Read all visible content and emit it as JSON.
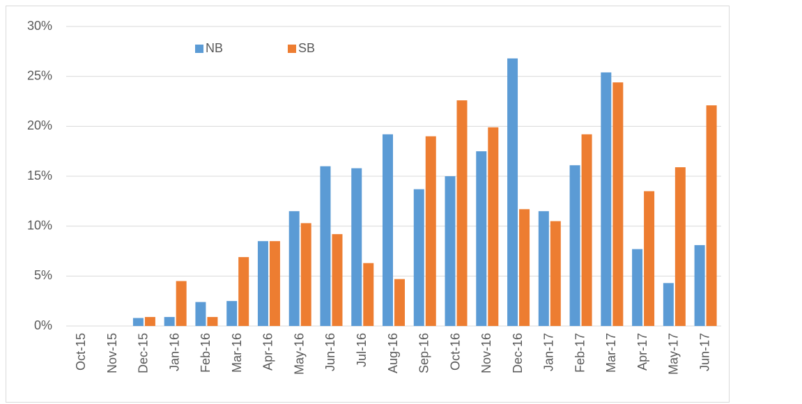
{
  "chart_data": {
    "type": "bar",
    "categories": [
      "Oct-15",
      "Nov-15",
      "Dec-15",
      "Jan-16",
      "Feb-16",
      "Mar-16",
      "Apr-16",
      "May-16",
      "Jun-16",
      "Jul-16",
      "Aug-16",
      "Sep-16",
      "Oct-16",
      "Nov-16",
      "Dec-16",
      "Jan-17",
      "Feb-17",
      "Mar-17",
      "Apr-17",
      "May-17",
      "Jun-17"
    ],
    "series": [
      {
        "name": "NB",
        "color": "#5b9bd5",
        "values": [
          0,
          0,
          0.8,
          0.9,
          2.4,
          2.5,
          8.5,
          11.5,
          16.0,
          15.8,
          19.2,
          13.7,
          15.0,
          17.5,
          26.8,
          11.5,
          16.1,
          25.4,
          7.7,
          4.3,
          8.1
        ]
      },
      {
        "name": "SB",
        "color": "#ed7d31",
        "values": [
          0,
          0,
          0.9,
          4.5,
          0.9,
          6.9,
          8.5,
          10.3,
          9.2,
          6.3,
          4.7,
          19.0,
          22.6,
          19.9,
          11.7,
          10.5,
          19.2,
          24.4,
          13.5,
          15.9,
          22.1
        ]
      }
    ],
    "ylim": [
      0,
      30
    ],
    "yticks": [
      {
        "value": 0,
        "label": "0%"
      },
      {
        "value": 5,
        "label": "5%"
      },
      {
        "value": 10,
        "label": "10%"
      },
      {
        "value": 15,
        "label": "15%"
      },
      {
        "value": 20,
        "label": "20%"
      },
      {
        "value": 25,
        "label": "25%"
      },
      {
        "value": 30,
        "label": "30%"
      }
    ],
    "grid": true,
    "legend": "top-left"
  }
}
